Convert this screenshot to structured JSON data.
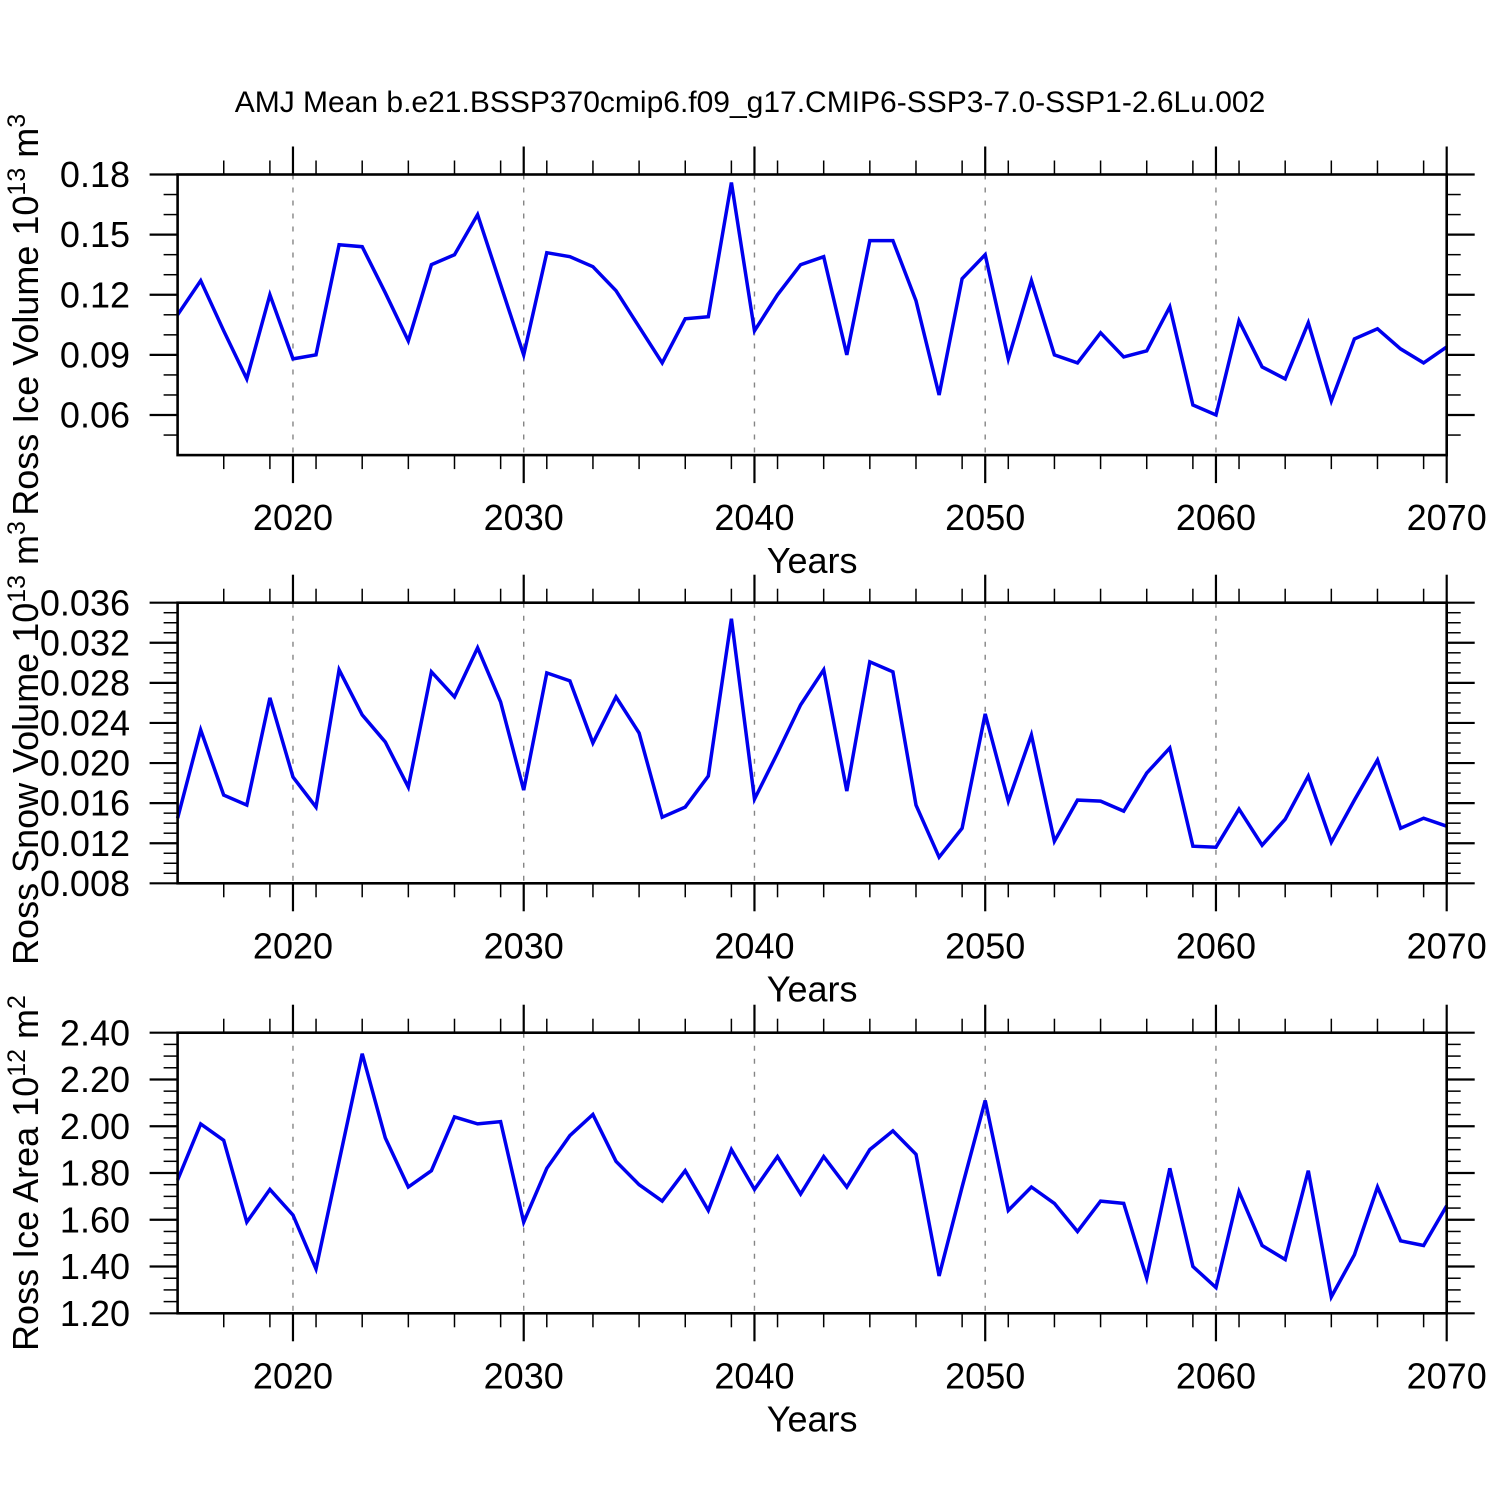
{
  "title": "AMJ Mean b.e21.BSSP370cmip6.f09_g17.CMIP6-SSP3-7.0-SSP1-2.6Lu.002",
  "colors": {
    "line": "#0000EE",
    "frame": "#000000",
    "grid": "#858585",
    "background": "#FFFFFF",
    "text": "#000000"
  },
  "x_axis": {
    "label": "Years",
    "range": [
      2015,
      2070
    ],
    "major_ticks": [
      2020,
      2030,
      2040,
      2050,
      2060,
      2070
    ],
    "minor_tick_step": 2,
    "grid_years": [
      2020,
      2030,
      2040,
      2050,
      2060
    ]
  },
  "chart_data": [
    {
      "type": "line",
      "name": "ross-ice-volume",
      "ylabel_plain": "Ross Ice Volume 10^13 m^3",
      "ylabel_parts": [
        {
          "text": "Ross Ice Volume 10",
          "sup": false
        },
        {
          "text": "13",
          "sup": true
        },
        {
          "text": " m",
          "sup": false
        },
        {
          "text": "3",
          "sup": true
        }
      ],
      "xlabel": "Years",
      "ylim": [
        0.04,
        0.18
      ],
      "y_major_ticks": [
        0.06,
        0.09,
        0.12,
        0.15,
        0.18
      ],
      "y_minor_step": 0.01,
      "y_tick_decimals": 2,
      "years_start": 2015,
      "values": [
        0.11,
        0.127,
        0.102,
        0.078,
        0.12,
        0.088,
        0.09,
        0.145,
        0.144,
        0.121,
        0.097,
        0.135,
        0.14,
        0.16,
        0.125,
        0.09,
        0.141,
        0.139,
        0.134,
        0.122,
        0.104,
        0.086,
        0.108,
        0.109,
        0.176,
        0.102,
        0.12,
        0.135,
        0.139,
        0.09,
        0.147,
        0.147,
        0.117,
        0.07,
        0.128,
        0.14,
        0.088,
        0.127,
        0.09,
        0.086,
        0.101,
        0.089,
        0.092,
        0.114,
        0.065,
        0.06,
        0.107,
        0.084,
        0.078,
        0.106,
        0.067,
        0.098,
        0.103,
        0.093,
        0.086,
        0.094
      ]
    },
    {
      "type": "line",
      "name": "ross-snow-volume",
      "ylabel_plain": "Ross Snow Volume 10^13 m^3",
      "ylabel_parts": [
        {
          "text": "Ross Snow Volume 10",
          "sup": false
        },
        {
          "text": "13",
          "sup": true
        },
        {
          "text": " m",
          "sup": false
        },
        {
          "text": "3",
          "sup": true
        }
      ],
      "xlabel": "Years",
      "ylim": [
        0.008,
        0.036
      ],
      "y_major_ticks": [
        0.008,
        0.012,
        0.016,
        0.02,
        0.024,
        0.028,
        0.032,
        0.036
      ],
      "y_minor_step": 0.001,
      "y_tick_decimals": 3,
      "years_start": 2015,
      "values": [
        0.0145,
        0.0233,
        0.0168,
        0.0158,
        0.0265,
        0.0186,
        0.0156,
        0.0293,
        0.0248,
        0.0221,
        0.0176,
        0.0291,
        0.0266,
        0.0315,
        0.0261,
        0.0173,
        0.029,
        0.0282,
        0.022,
        0.0266,
        0.023,
        0.0146,
        0.0156,
        0.0187,
        0.0344,
        0.0164,
        0.021,
        0.0258,
        0.0293,
        0.0172,
        0.0301,
        0.0291,
        0.0158,
        0.0106,
        0.0135,
        0.0249,
        0.0162,
        0.0228,
        0.0122,
        0.0163,
        0.0162,
        0.0152,
        0.019,
        0.0215,
        0.0117,
        0.0116,
        0.0154,
        0.0118,
        0.0144,
        0.0187,
        0.0121,
        0.0163,
        0.0203,
        0.0135,
        0.0145,
        0.0137
      ]
    },
    {
      "type": "line",
      "name": "ross-ice-area",
      "ylabel_plain": "Ross Ice Area 10^12 m^2",
      "ylabel_parts": [
        {
          "text": "Ross Ice Area 10",
          "sup": false
        },
        {
          "text": "12",
          "sup": true
        },
        {
          "text": " m",
          "sup": false
        },
        {
          "text": "2",
          "sup": true
        }
      ],
      "xlabel": "Years",
      "ylim": [
        1.2,
        2.4
      ],
      "y_major_ticks": [
        1.2,
        1.4,
        1.6,
        1.8,
        2.0,
        2.2,
        2.4
      ],
      "y_minor_step": 0.05,
      "y_tick_decimals": 2,
      "years_start": 2015,
      "values": [
        1.77,
        2.01,
        1.94,
        1.59,
        1.73,
        1.62,
        1.39,
        1.85,
        2.31,
        1.95,
        1.74,
        1.81,
        2.04,
        2.01,
        2.02,
        1.59,
        1.82,
        1.96,
        2.05,
        1.85,
        1.75,
        1.68,
        1.81,
        1.64,
        1.9,
        1.73,
        1.87,
        1.71,
        1.87,
        1.74,
        1.9,
        1.98,
        1.88,
        1.36,
        1.74,
        2.11,
        1.64,
        1.74,
        1.67,
        1.55,
        1.68,
        1.67,
        1.35,
        1.82,
        1.4,
        1.31,
        1.72,
        1.49,
        1.43,
        1.81,
        1.27,
        1.45,
        1.74,
        1.51,
        1.49,
        1.66
      ]
    }
  ]
}
